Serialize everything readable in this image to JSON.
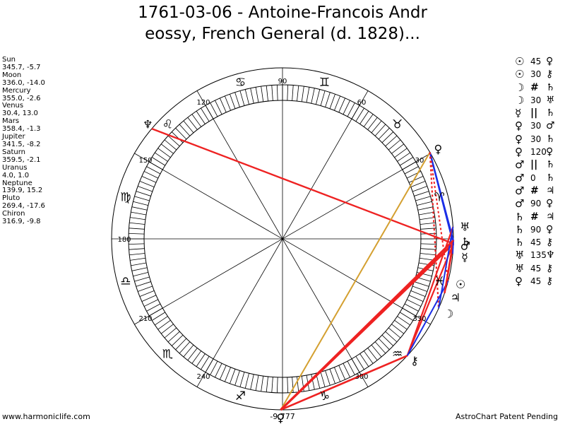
{
  "title_line1": "1761-03-06 - Antoine-Francois Andr",
  "title_line2": "eossy, French General (d. 1828)...",
  "planets": [
    {
      "name": "Sun",
      "coords": "345.7, -5.7"
    },
    {
      "name": "Moon",
      "coords": "336.0, -14.0"
    },
    {
      "name": "Mercury",
      "coords": "355.0, -2.6"
    },
    {
      "name": "Venus",
      "coords": "30.4, 13.0"
    },
    {
      "name": "Mars",
      "coords": "358.4, -1.3"
    },
    {
      "name": "Jupiter",
      "coords": "341.5, -8.2"
    },
    {
      "name": "Saturn",
      "coords": "359.5, -2.1"
    },
    {
      "name": "Uranus",
      "coords": "4.0, 1.0"
    },
    {
      "name": "Neptune",
      "coords": "139.9, 15.2"
    },
    {
      "name": "Pluto",
      "coords": "269.4, -17.6"
    },
    {
      "name": "Chiron",
      "coords": "316.9, -9.8"
    }
  ],
  "aspects": [
    {
      "p1": "☉",
      "angle": "45",
      "p2": "♀"
    },
    {
      "p1": "☉",
      "angle": "30",
      "p2": "⚷"
    },
    {
      "p1": "☽",
      "angle": "#",
      "p2": "♄"
    },
    {
      "p1": "☽",
      "angle": "30",
      "p2": "♅"
    },
    {
      "p1": "☿",
      "angle": "||",
      "p2": "♄"
    },
    {
      "p1": "♀",
      "angle": "30",
      "p2": "♂"
    },
    {
      "p1": "♀",
      "angle": "30",
      "p2": "♄"
    },
    {
      "p1": "♀",
      "angle": "120",
      "p2": "♀"
    },
    {
      "p1": "♂",
      "angle": "||",
      "p2": "♄"
    },
    {
      "p1": "♂",
      "angle": "0",
      "p2": "♄"
    },
    {
      "p1": "♂",
      "angle": "#",
      "p2": "♃"
    },
    {
      "p1": "♂",
      "angle": "90",
      "p2": "♀"
    },
    {
      "p1": "♄",
      "angle": "#",
      "p2": "♃"
    },
    {
      "p1": "♄",
      "angle": "90",
      "p2": "♀"
    },
    {
      "p1": "♄",
      "angle": "45",
      "p2": "⚷"
    },
    {
      "p1": "♅",
      "angle": "135",
      "p2": "♆"
    },
    {
      "p1": "♅",
      "angle": "45",
      "p2": "⚷"
    },
    {
      "p1": "♀",
      "angle": "45",
      "p2": "⚷"
    }
  ],
  "wheel": {
    "degree_labels": [
      "90",
      "60",
      "30",
      "330",
      "300",
      "240",
      "210",
      "180",
      "150",
      "120"
    ],
    "zodiac_signs": [
      "♈",
      "♉",
      "♊",
      "♋",
      "♌",
      "♍",
      "♎",
      "♏",
      "♐",
      "♑",
      "♒",
      "♓"
    ],
    "bottom_label": "-9,777",
    "planet_glyphs": [
      {
        "glyph": "♀",
        "lon": 30.4
      },
      {
        "glyph": "♅",
        "lon": 4.0
      },
      {
        "glyph": "♄",
        "lon": 359.5
      },
      {
        "glyph": "♂",
        "lon": 358.4
      },
      {
        "glyph": "☿",
        "lon": 355.0
      },
      {
        "glyph": "☉",
        "lon": 345.7
      },
      {
        "glyph": "♃",
        "lon": 341.5
      },
      {
        "glyph": "☽",
        "lon": 336.0
      },
      {
        "glyph": "⚷",
        "lon": 316.9
      },
      {
        "glyph": "♀",
        "lon": 269.4
      },
      {
        "glyph": "♆",
        "lon": 139.9
      }
    ]
  },
  "colors": {
    "red": "#ee2222",
    "blue": "#1a2ee6",
    "gold": "#d4a030"
  },
  "footer_left": "www.harmoniclife.com",
  "footer_right": "AstroChart Patent Pending"
}
